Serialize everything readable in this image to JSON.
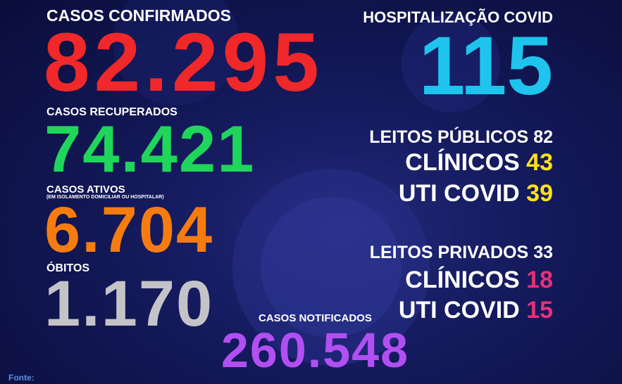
{
  "left": {
    "confirmed": {
      "label": "CASOS CONFIRMADOS",
      "value": "82.295"
    },
    "recovered": {
      "label": "CASOS RECUPERADOS",
      "value": "74.421"
    },
    "active": {
      "label": "CASOS ATIVOS",
      "note": "(EM ISOLAMENTO DOMICILIAR OU HOSPITALAR)",
      "value": "6.704"
    },
    "deaths": {
      "label": "ÓBITOS",
      "value": "1.170"
    }
  },
  "right": {
    "hospital": {
      "label": "HOSPITALIZAÇÃO COVID",
      "value": "115"
    },
    "public": {
      "label": "LEITOS PÚBLICOS",
      "value": "82",
      "rows": [
        {
          "label": "CLÍNICOS",
          "value": "43"
        },
        {
          "label": "UTI COVID",
          "value": "39"
        }
      ]
    },
    "private": {
      "label": "LEITOS PRIVADOS",
      "value": "33",
      "rows": [
        {
          "label": "CLÍNICOS",
          "value": "18"
        },
        {
          "label": "UTI COVID",
          "value": "15"
        }
      ]
    }
  },
  "notified": {
    "label": "CASOS NOTIFICADOS",
    "value": "260.548"
  },
  "footer": {
    "source": "Fonte:"
  }
}
